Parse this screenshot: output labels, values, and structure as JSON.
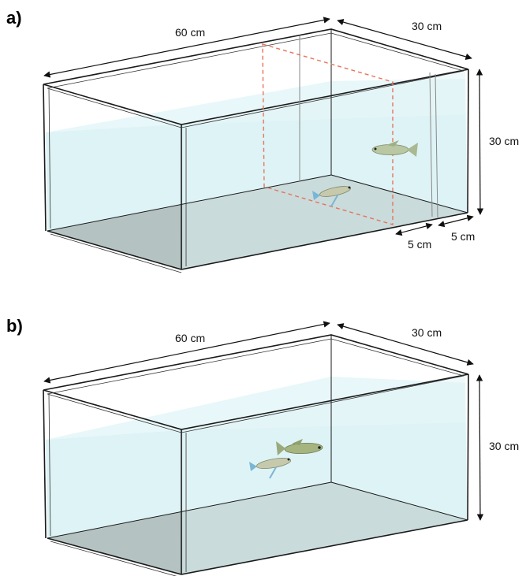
{
  "panels": [
    {
      "label": "a)",
      "dims": {
        "length": "60 cm",
        "depth": "30 cm",
        "height": "30 cm",
        "gap_inner": "5 cm",
        "gap_outer": "5 cm"
      }
    },
    {
      "label": "b)",
      "dims": {
        "length": "60 cm",
        "depth": "30 cm",
        "height": "30 cm"
      }
    }
  ],
  "colors": {
    "water": "#cfeef2",
    "water_top": "#e6f6f8",
    "floor": "#a9b9b8",
    "glass_edge": "#1a1a1a",
    "partition_dash": "#e8735a",
    "fish_body": "#b9c7a2",
    "fish_tail": "#79b6d4"
  }
}
